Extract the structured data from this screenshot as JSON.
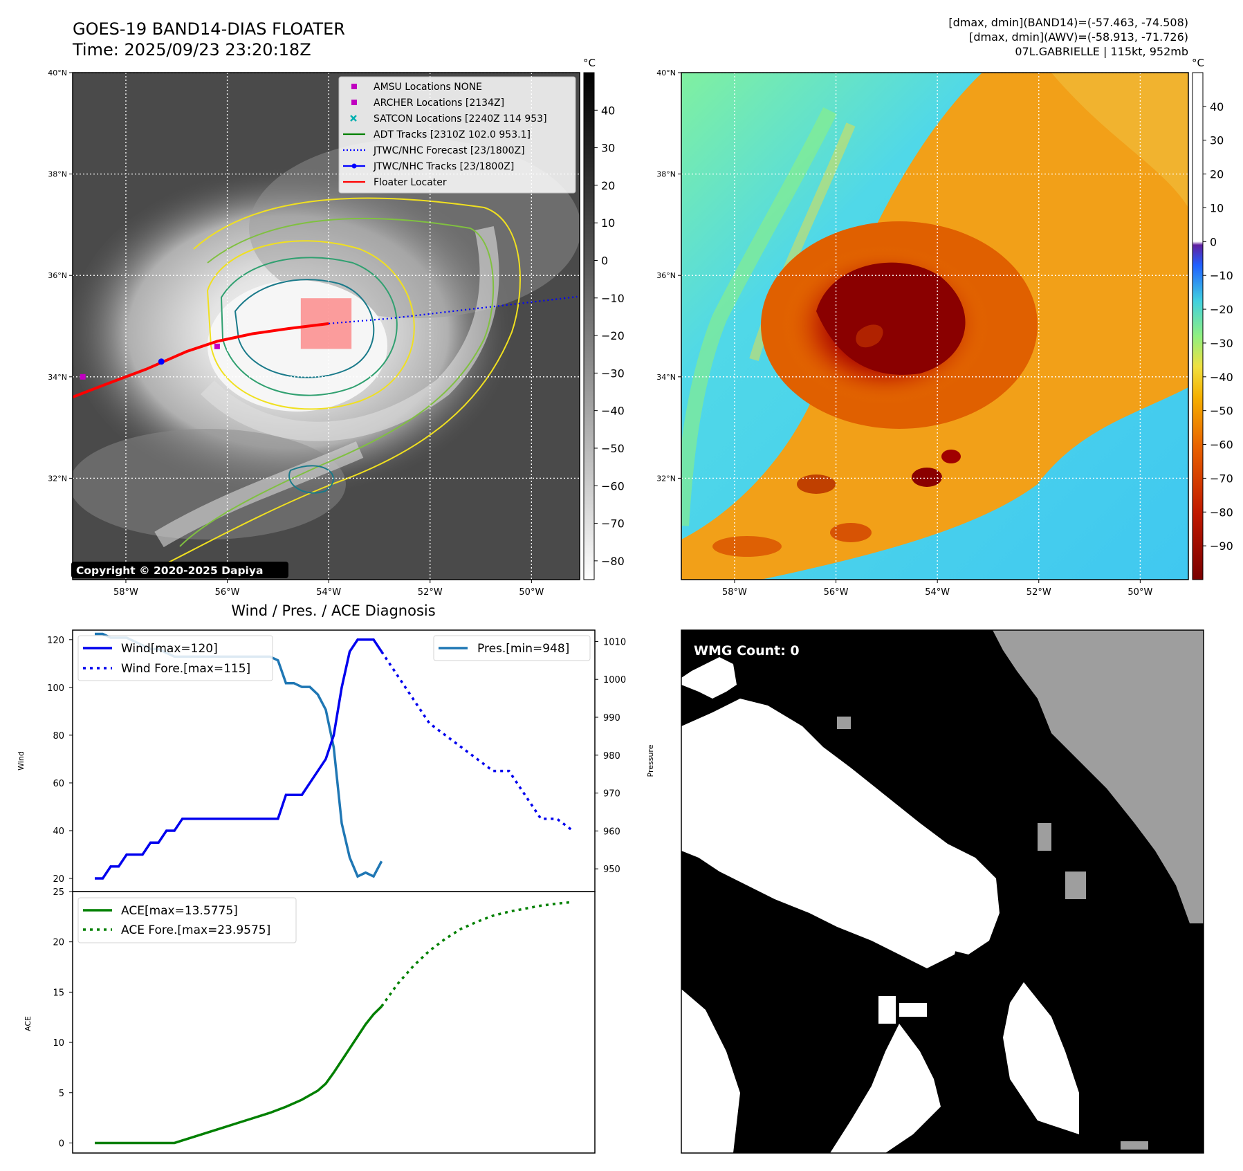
{
  "header": {
    "title_line1": "GOES-19 BAND14-DIAS FLOATER",
    "title_line2": "Time: 2025/09/23 23:20:18Z",
    "info_line1": "[dmax, dmin](BAND14)=(-57.463, -74.508)",
    "info_line2": "[dmax, dmin](AWV)=(-58.913, -71.726)",
    "info_line3": "07L.GABRIELLE | 115kt, 952mb"
  },
  "maps": {
    "lat_labels": [
      "40°N",
      "38°N",
      "36°N",
      "34°N",
      "32°N"
    ],
    "lat_values": [
      40,
      38,
      36,
      34,
      32
    ],
    "lon_labels": [
      "58°W",
      "56°W",
      "54°W",
      "52°W",
      "50°W"
    ],
    "lon_values": [
      -58,
      -56,
      -54,
      -52,
      -50
    ],
    "lat_range": [
      30,
      40
    ],
    "lon_range": [
      -59.05,
      -49.05
    ],
    "copyright": "Copyright © 2020-2025 Dapiya",
    "unit": "°C",
    "ir_colorbar_ticks": [
      "40",
      "30",
      "20",
      "10",
      "0",
      "−10",
      "−20",
      "−30",
      "−40",
      "−50",
      "−60",
      "−70",
      "−80"
    ],
    "ir_colorbar_values": [
      40,
      30,
      20,
      10,
      0,
      -10,
      -20,
      -30,
      -40,
      -50,
      -60,
      -70,
      -80
    ],
    "ir_colorbar_range": [
      -85,
      50
    ],
    "awv_colorbar_ticks": [
      "40",
      "30",
      "20",
      "10",
      "0",
      "−10",
      "−20",
      "−30",
      "−40",
      "−50",
      "−60",
      "−70",
      "−80",
      "−90"
    ],
    "awv_colorbar_values": [
      40,
      30,
      20,
      10,
      0,
      -10,
      -20,
      -30,
      -40,
      -50,
      -60,
      -70,
      -80,
      -90
    ],
    "awv_colorbar_range": [
      -100,
      50
    ],
    "legend": [
      {
        "label": "AMSU Locations NONE",
        "color": "#c000c0",
        "kind": "square"
      },
      {
        "label": "ARCHER Locations [2134Z]",
        "color": "#c000c0",
        "kind": "square"
      },
      {
        "label": "SATCON Locations [2240Z 114 953]",
        "color": "#00b0b0",
        "kind": "x"
      },
      {
        "label": "ADT Tracks [2310Z 102.0 953.1]",
        "color": "#008000",
        "kind": "line"
      },
      {
        "label": "JTWC/NHC Forecast [23/1800Z]",
        "color": "#0000ff",
        "kind": "dotted"
      },
      {
        "label": "JTWC/NHC Tracks [23/1800Z]",
        "color": "#0000ff",
        "kind": "dotline"
      },
      {
        "label": "Floater Locater",
        "color": "#ff0000",
        "kind": "line"
      }
    ],
    "track": {
      "lon": [
        -59.05,
        -58.4,
        -57.6,
        -56.8,
        -56.2,
        -55.5,
        -54.8,
        -54.0
      ],
      "lat": [
        33.6,
        33.85,
        34.15,
        34.5,
        34.7,
        34.85,
        34.95,
        35.05
      ]
    },
    "forecast": {
      "lon": [
        -54.0,
        -52.8,
        -51.5,
        -50.2,
        -49.1
      ],
      "lat": [
        35.05,
        35.15,
        35.3,
        35.45,
        35.58
      ]
    },
    "floater_box": {
      "lon": [
        -54.55,
        -53.55
      ],
      "lat": [
        34.55,
        35.55
      ]
    },
    "archer_points": {
      "lon": [
        -58.85,
        -56.2
      ],
      "lat": [
        34.0,
        34.6
      ]
    }
  },
  "diagnosis": {
    "title": "Wind / Pres. / ACE Diagnosis",
    "wind_ylabel": "Wind",
    "pres_ylabel": "Pressure",
    "ace_ylabel": "ACE",
    "wind_legend": [
      "Wind[max=120]",
      "Wind Fore.[max=115]"
    ],
    "pres_legend": "Pres.[min=948]",
    "ace_legend": [
      "ACE[max=13.5775]",
      "ACE Fore.[max=23.9575]"
    ],
    "wind_ticks": [
      "120",
      "100",
      "80",
      "60",
      "40",
      "20"
    ],
    "pres_ticks": [
      "1010",
      "1000",
      "990",
      "980",
      "970",
      "960",
      "950"
    ],
    "ace_ticks": [
      "25",
      "20",
      "15",
      "10",
      "5",
      "0"
    ],
    "wmg_text": "WMG Count: 0"
  },
  "chart_data": [
    {
      "type": "line",
      "title": "Wind / Pres. / ACE Diagnosis",
      "ylabel": "Wind",
      "ylim": [
        14.5,
        124
      ],
      "xlim": [
        0,
        60
      ],
      "series": [
        {
          "name": "Wind[max=120]",
          "x": [
            0,
            1,
            2,
            3,
            4,
            5,
            6,
            7,
            8,
            9,
            10,
            11,
            12,
            13,
            14,
            15,
            16,
            17,
            18,
            19,
            20,
            21,
            22,
            23,
            24,
            25,
            26,
            27,
            28,
            29,
            30,
            31,
            32,
            33,
            34,
            35,
            36
          ],
          "values": [
            20,
            20,
            25,
            25,
            30,
            30,
            30,
            35,
            35,
            40,
            40,
            45,
            45,
            45,
            45,
            45,
            45,
            45,
            45,
            45,
            45,
            45,
            45,
            45,
            55,
            55,
            55,
            60,
            65,
            70,
            80,
            100,
            115,
            120,
            120,
            120,
            115
          ]
        },
        {
          "name": "Wind Fore.[max=115]",
          "x": [
            36,
            38,
            40,
            42,
            44,
            46,
            48,
            50,
            52,
            54,
            56,
            58,
            60
          ],
          "values": [
            115,
            105,
            95,
            85,
            80,
            75,
            70,
            65,
            65,
            55,
            45,
            45,
            40
          ]
        }
      ]
    },
    {
      "type": "line",
      "ylabel": "Pressure",
      "ylim": [
        944,
        1013
      ],
      "series": [
        {
          "name": "Pres.[min=948]",
          "x": [
            0,
            1,
            2,
            3,
            4,
            5,
            6,
            7,
            8,
            9,
            10,
            11,
            12,
            13,
            14,
            15,
            16,
            17,
            18,
            19,
            20,
            21,
            22,
            23,
            24,
            25,
            26,
            27,
            28,
            29,
            30,
            31,
            32,
            33,
            34,
            35,
            36
          ],
          "values": [
            1012,
            1012,
            1011,
            1011,
            1011,
            1010,
            1009,
            1008,
            1008,
            1007,
            1006,
            1006,
            1006,
            1006,
            1006,
            1006,
            1006,
            1006,
            1006,
            1006,
            1006,
            1006,
            1006,
            1005,
            999,
            999,
            998,
            998,
            996,
            992,
            982,
            962,
            953,
            948,
            949,
            948,
            952
          ]
        }
      ]
    },
    {
      "type": "line",
      "ylabel": "ACE",
      "ylim": [
        -1,
        25
      ],
      "series": [
        {
          "name": "ACE[max=13.5775]",
          "x": [
            0,
            2,
            4,
            6,
            8,
            10,
            12,
            14,
            16,
            18,
            20,
            22,
            24,
            26,
            28,
            29,
            30,
            31,
            32,
            33,
            34,
            35,
            36
          ],
          "values": [
            0,
            0,
            0,
            0,
            0,
            0,
            0.5,
            1,
            1.5,
            2,
            2.5,
            3,
            3.6,
            4.3,
            5.2,
            5.9,
            7.0,
            8.2,
            9.4,
            10.6,
            11.8,
            12.8,
            13.5775
          ]
        },
        {
          "name": "ACE Fore.[max=23.9575]",
          "x": [
            36,
            38,
            40,
            42,
            44,
            46,
            48,
            50,
            52,
            54,
            56,
            58,
            60
          ],
          "values": [
            13.5775,
            15.8,
            17.6,
            19.1,
            20.3,
            21.3,
            22.0,
            22.6,
            23.0,
            23.3,
            23.6,
            23.8,
            23.9575
          ]
        }
      ]
    }
  ]
}
